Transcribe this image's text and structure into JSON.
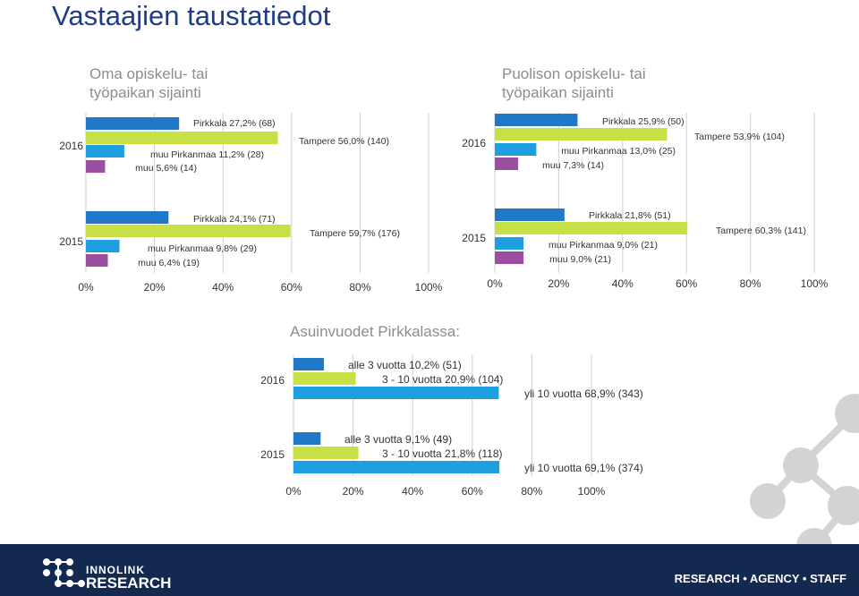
{
  "page_title": "Vastaajien taustatiedot",
  "colors": {
    "title": "#1F3C88",
    "footer": "#14294F",
    "deco": "#D3D3D3",
    "tick": "#D0D0D0"
  },
  "footer": {
    "brand_line1": "INNOLINK",
    "brand_line2": "RESEARCH",
    "tagline": "RESEARCH • AGENCY • STAFF"
  },
  "chart_data": [
    {
      "type": "bar",
      "orientation": "horizontal",
      "title_lines": [
        "Oma opiskelu- tai",
        "työpaikan sijainti"
      ],
      "categories": [
        "2016",
        "2015"
      ],
      "series": [
        {
          "name": "Pirkkala",
          "color": "#1F78C8",
          "values": [
            27.2,
            24.1
          ],
          "labels": [
            "Pirkkala 27,2% (68)",
            "Pirkkala 24,1% (71)"
          ]
        },
        {
          "name": "Tampere",
          "color": "#C6E046",
          "values": [
            56.0,
            59.7
          ],
          "labels": [
            "Tampere 56,0% (140)",
            "Tampere 59,7% (176)"
          ]
        },
        {
          "name": "muu Pirkanmaa",
          "color": "#1E9FE2",
          "values": [
            11.2,
            9.8
          ],
          "labels": [
            "muu Pirkanmaa 11,2% (28)",
            "muu Pirkanmaa 9,8% (29)"
          ]
        },
        {
          "name": "muu",
          "color": "#9A4FA0",
          "values": [
            5.6,
            6.4
          ],
          "labels": [
            "muu 5,6% (14)",
            "muu 6,4% (19)"
          ]
        }
      ],
      "xlim": [
        0,
        100
      ],
      "xticks": [
        "0%",
        "20%",
        "40%",
        "60%",
        "80%",
        "100%"
      ]
    },
    {
      "type": "bar",
      "orientation": "horizontal",
      "title_lines": [
        "Puolison opiskelu- tai",
        "työpaikan sijainti"
      ],
      "categories": [
        "2016",
        "2015"
      ],
      "series": [
        {
          "name": "Pirkkala",
          "color": "#1F78C8",
          "values": [
            25.9,
            21.8
          ],
          "labels": [
            "Pirkkala 25,9% (50)",
            "Pirkkala 21,8% (51)"
          ]
        },
        {
          "name": "Tampere",
          "color": "#C6E046",
          "values": [
            53.9,
            60.3
          ],
          "labels": [
            "Tampere 53,9% (104)",
            "Tampere 60,3% (141)"
          ]
        },
        {
          "name": "muu Pirkanmaa",
          "color": "#1E9FE2",
          "values": [
            13.0,
            9.0
          ],
          "labels": [
            "muu Pirkanmaa 13,0% (25)",
            "muu Pirkanmaa 9,0% (21)"
          ]
        },
        {
          "name": "muu",
          "color": "#9A4FA0",
          "values": [
            7.3,
            9.0
          ],
          "labels": [
            "muu 7,3% (14)",
            "muu 9,0% (21)"
          ]
        }
      ],
      "xlim": [
        0,
        100
      ],
      "xticks": [
        "0%",
        "20%",
        "40%",
        "60%",
        "80%",
        "100%"
      ]
    },
    {
      "type": "bar",
      "orientation": "horizontal",
      "title_lines": [
        "Asuinvuodet Pirkkalassa:"
      ],
      "categories": [
        "2016",
        "2015"
      ],
      "series": [
        {
          "name": "alle 3 vuotta",
          "color": "#1F78C8",
          "values": [
            10.2,
            9.1
          ],
          "labels": [
            "alle 3 vuotta 10,2% (51)",
            "alle 3 vuotta 9,1% (49)"
          ]
        },
        {
          "name": "3 - 10 vuotta",
          "color": "#C6E046",
          "values": [
            20.9,
            21.8
          ],
          "labels": [
            "3 - 10 vuotta 20,9% (104)",
            "3 - 10 vuotta 21,8% (118)"
          ]
        },
        {
          "name": "yli 10 vuotta",
          "color": "#1E9FE2",
          "values": [
            68.9,
            69.1
          ],
          "labels": [
            "yli 10 vuotta 68,9% (343)",
            "yli 10 vuotta 69,1% (374)"
          ]
        }
      ],
      "xlim": [
        0,
        100
      ],
      "xticks": [
        "0%",
        "20%",
        "40%",
        "60%",
        "80%",
        "100%"
      ]
    }
  ]
}
